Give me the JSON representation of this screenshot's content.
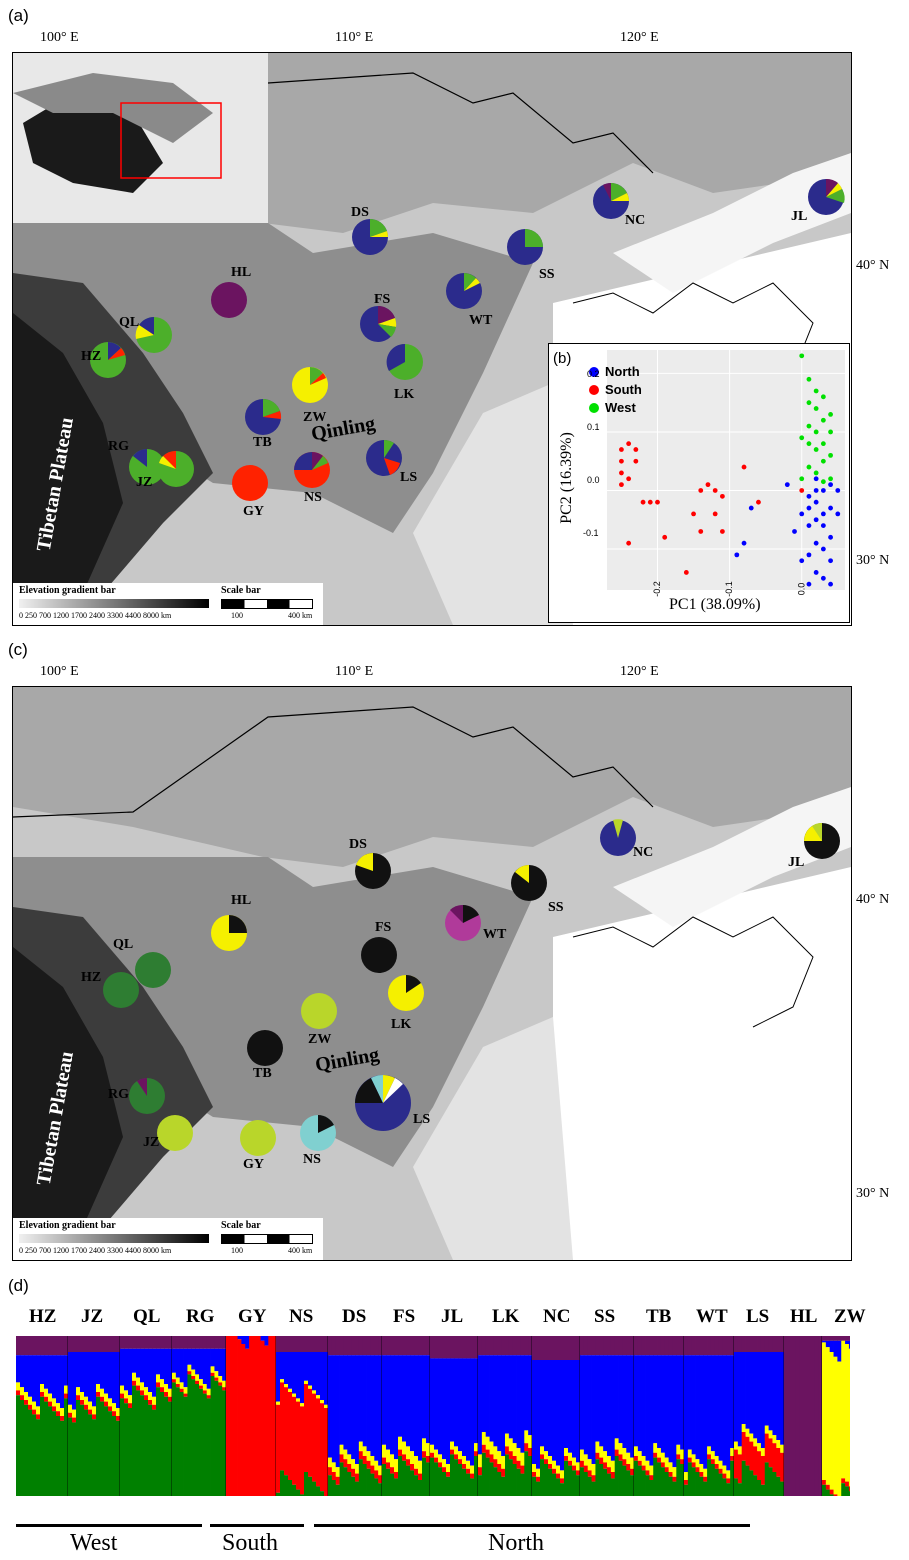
{
  "panels": {
    "a": "(a)",
    "b": "(b)",
    "c": "(c)",
    "d": "(d)"
  },
  "map": {
    "lon_labels": [
      "100° E",
      "110° E",
      "120° E"
    ],
    "lat_labels": [
      "40° N",
      "30° N"
    ],
    "region_labels": {
      "plateau": "Tibetan Plateau",
      "qinling": "Qinling"
    },
    "elevation_title": "Elevation gradient bar",
    "elevation_ticks": "0 250 700 1200 1700 2400 3300 4400 8000 km",
    "scale_title": "Scale bar",
    "scale_ticks": [
      "100",
      "400 km"
    ],
    "colors": {
      "navy": "#2b2b8c",
      "green": "#4caf2a",
      "purple": "#6b1460",
      "yellow": "#f5f000",
      "red": "#ff2200",
      "darkgreen": "#2e7d32",
      "lime": "#b9d62a",
      "black": "#111111",
      "magenta": "#b03a9a",
      "cyan": "#80d0d0"
    }
  },
  "sites_a": [
    "DS",
    "NC",
    "JL",
    "HL",
    "SS",
    "FS",
    "WT",
    "QL",
    "HZ",
    "LK",
    "ZW",
    "TB",
    "RG",
    "JZ",
    "GY",
    "NS",
    "LS"
  ],
  "sites_c": [
    "DS",
    "NC",
    "JL",
    "HL",
    "SS",
    "FS",
    "WT",
    "QL",
    "HZ",
    "LK",
    "ZW",
    "TB",
    "RG",
    "JZ",
    "GY",
    "NS",
    "LS"
  ],
  "pca": {
    "legend": [
      {
        "name": "North",
        "color": "#0000ff"
      },
      {
        "name": "South",
        "color": "#ff0000"
      },
      {
        "name": "West",
        "color": "#00e000"
      }
    ],
    "xlabel": "PC1 (38.09%)",
    "ylabel": "PC2 (16.39%)",
    "x_ticks": [
      "-0.2",
      "-0.1",
      "0.0"
    ],
    "y_ticks": [
      "0.2",
      "0.1",
      "0.0",
      "-0.1"
    ]
  },
  "chart_data": {
    "type": "scatter",
    "xlabel": "PC1 (38.09%)",
    "ylabel": "PC2 (16.39%)",
    "xlim": [
      -0.27,
      0.06
    ],
    "ylim": [
      -0.17,
      0.24
    ],
    "series": [
      {
        "name": "South",
        "color": "#ff0000",
        "points": [
          [
            -0.25,
            0.07
          ],
          [
            -0.24,
            0.08
          ],
          [
            -0.23,
            0.07
          ],
          [
            -0.25,
            0.05
          ],
          [
            -0.23,
            0.05
          ],
          [
            -0.25,
            0.03
          ],
          [
            -0.24,
            0.02
          ],
          [
            -0.25,
            0.01
          ],
          [
            -0.22,
            -0.02
          ],
          [
            -0.21,
            -0.02
          ],
          [
            -0.2,
            -0.02
          ],
          [
            -0.24,
            -0.09
          ],
          [
            -0.19,
            -0.08
          ],
          [
            -0.14,
            0.0
          ],
          [
            -0.13,
            0.01
          ],
          [
            -0.12,
            0.0
          ],
          [
            -0.11,
            -0.01
          ],
          [
            -0.12,
            -0.04
          ],
          [
            -0.15,
            -0.04
          ],
          [
            -0.14,
            -0.07
          ],
          [
            -0.11,
            -0.07
          ],
          [
            -0.16,
            -0.14
          ],
          [
            -0.08,
            0.04
          ],
          [
            -0.06,
            -0.02
          ],
          [
            0.0,
            0.0
          ]
        ]
      },
      {
        "name": "West",
        "color": "#00e000",
        "points": [
          [
            0.0,
            0.23
          ],
          [
            0.01,
            0.19
          ],
          [
            0.02,
            0.17
          ],
          [
            0.03,
            0.16
          ],
          [
            0.01,
            0.15
          ],
          [
            0.02,
            0.14
          ],
          [
            0.04,
            0.13
          ],
          [
            0.03,
            0.12
          ],
          [
            0.01,
            0.11
          ],
          [
            0.02,
            0.1
          ],
          [
            0.04,
            0.1
          ],
          [
            0.0,
            0.09
          ],
          [
            0.01,
            0.08
          ],
          [
            0.03,
            0.08
          ],
          [
            0.02,
            0.07
          ],
          [
            0.04,
            0.06
          ],
          [
            0.03,
            0.05
          ],
          [
            0.01,
            0.04
          ],
          [
            0.02,
            0.03
          ],
          [
            0.0,
            0.02
          ],
          [
            0.04,
            0.02
          ],
          [
            0.03,
            0.015
          ]
        ]
      },
      {
        "name": "North",
        "color": "#0000ff",
        "points": [
          [
            -0.02,
            0.01
          ],
          [
            -0.01,
            -0.07
          ],
          [
            -0.07,
            -0.03
          ],
          [
            -0.08,
            -0.09
          ],
          [
            -0.09,
            -0.11
          ],
          [
            0.0,
            -0.12
          ],
          [
            0.01,
            -0.06
          ],
          [
            0.02,
            -0.05
          ],
          [
            0.03,
            -0.04
          ],
          [
            0.04,
            -0.03
          ],
          [
            0.02,
            -0.02
          ],
          [
            0.01,
            -0.01
          ],
          [
            0.03,
            0.0
          ],
          [
            0.04,
            0.01
          ],
          [
            0.02,
            0.02
          ],
          [
            0.01,
            -0.03
          ],
          [
            0.03,
            -0.06
          ],
          [
            0.04,
            -0.08
          ],
          [
            0.02,
            -0.09
          ],
          [
            0.03,
            -0.1
          ],
          [
            0.01,
            -0.11
          ],
          [
            0.04,
            -0.12
          ],
          [
            0.02,
            -0.14
          ],
          [
            0.03,
            -0.15
          ],
          [
            0.04,
            -0.16
          ],
          [
            0.01,
            -0.16
          ],
          [
            0.05,
            -0.04
          ],
          [
            0.0,
            -0.04
          ],
          [
            0.02,
            0.0
          ],
          [
            0.05,
            0.0
          ]
        ]
      }
    ]
  },
  "structure": {
    "populations": [
      "HZ",
      "JZ",
      "QL",
      "RG",
      "GY",
      "NS",
      "DS",
      "FS",
      "JL",
      "LK",
      "NC",
      "SS",
      "TB",
      "WT",
      "LS",
      "HL",
      "ZW"
    ],
    "groups": [
      "West",
      "South",
      "North"
    ]
  }
}
